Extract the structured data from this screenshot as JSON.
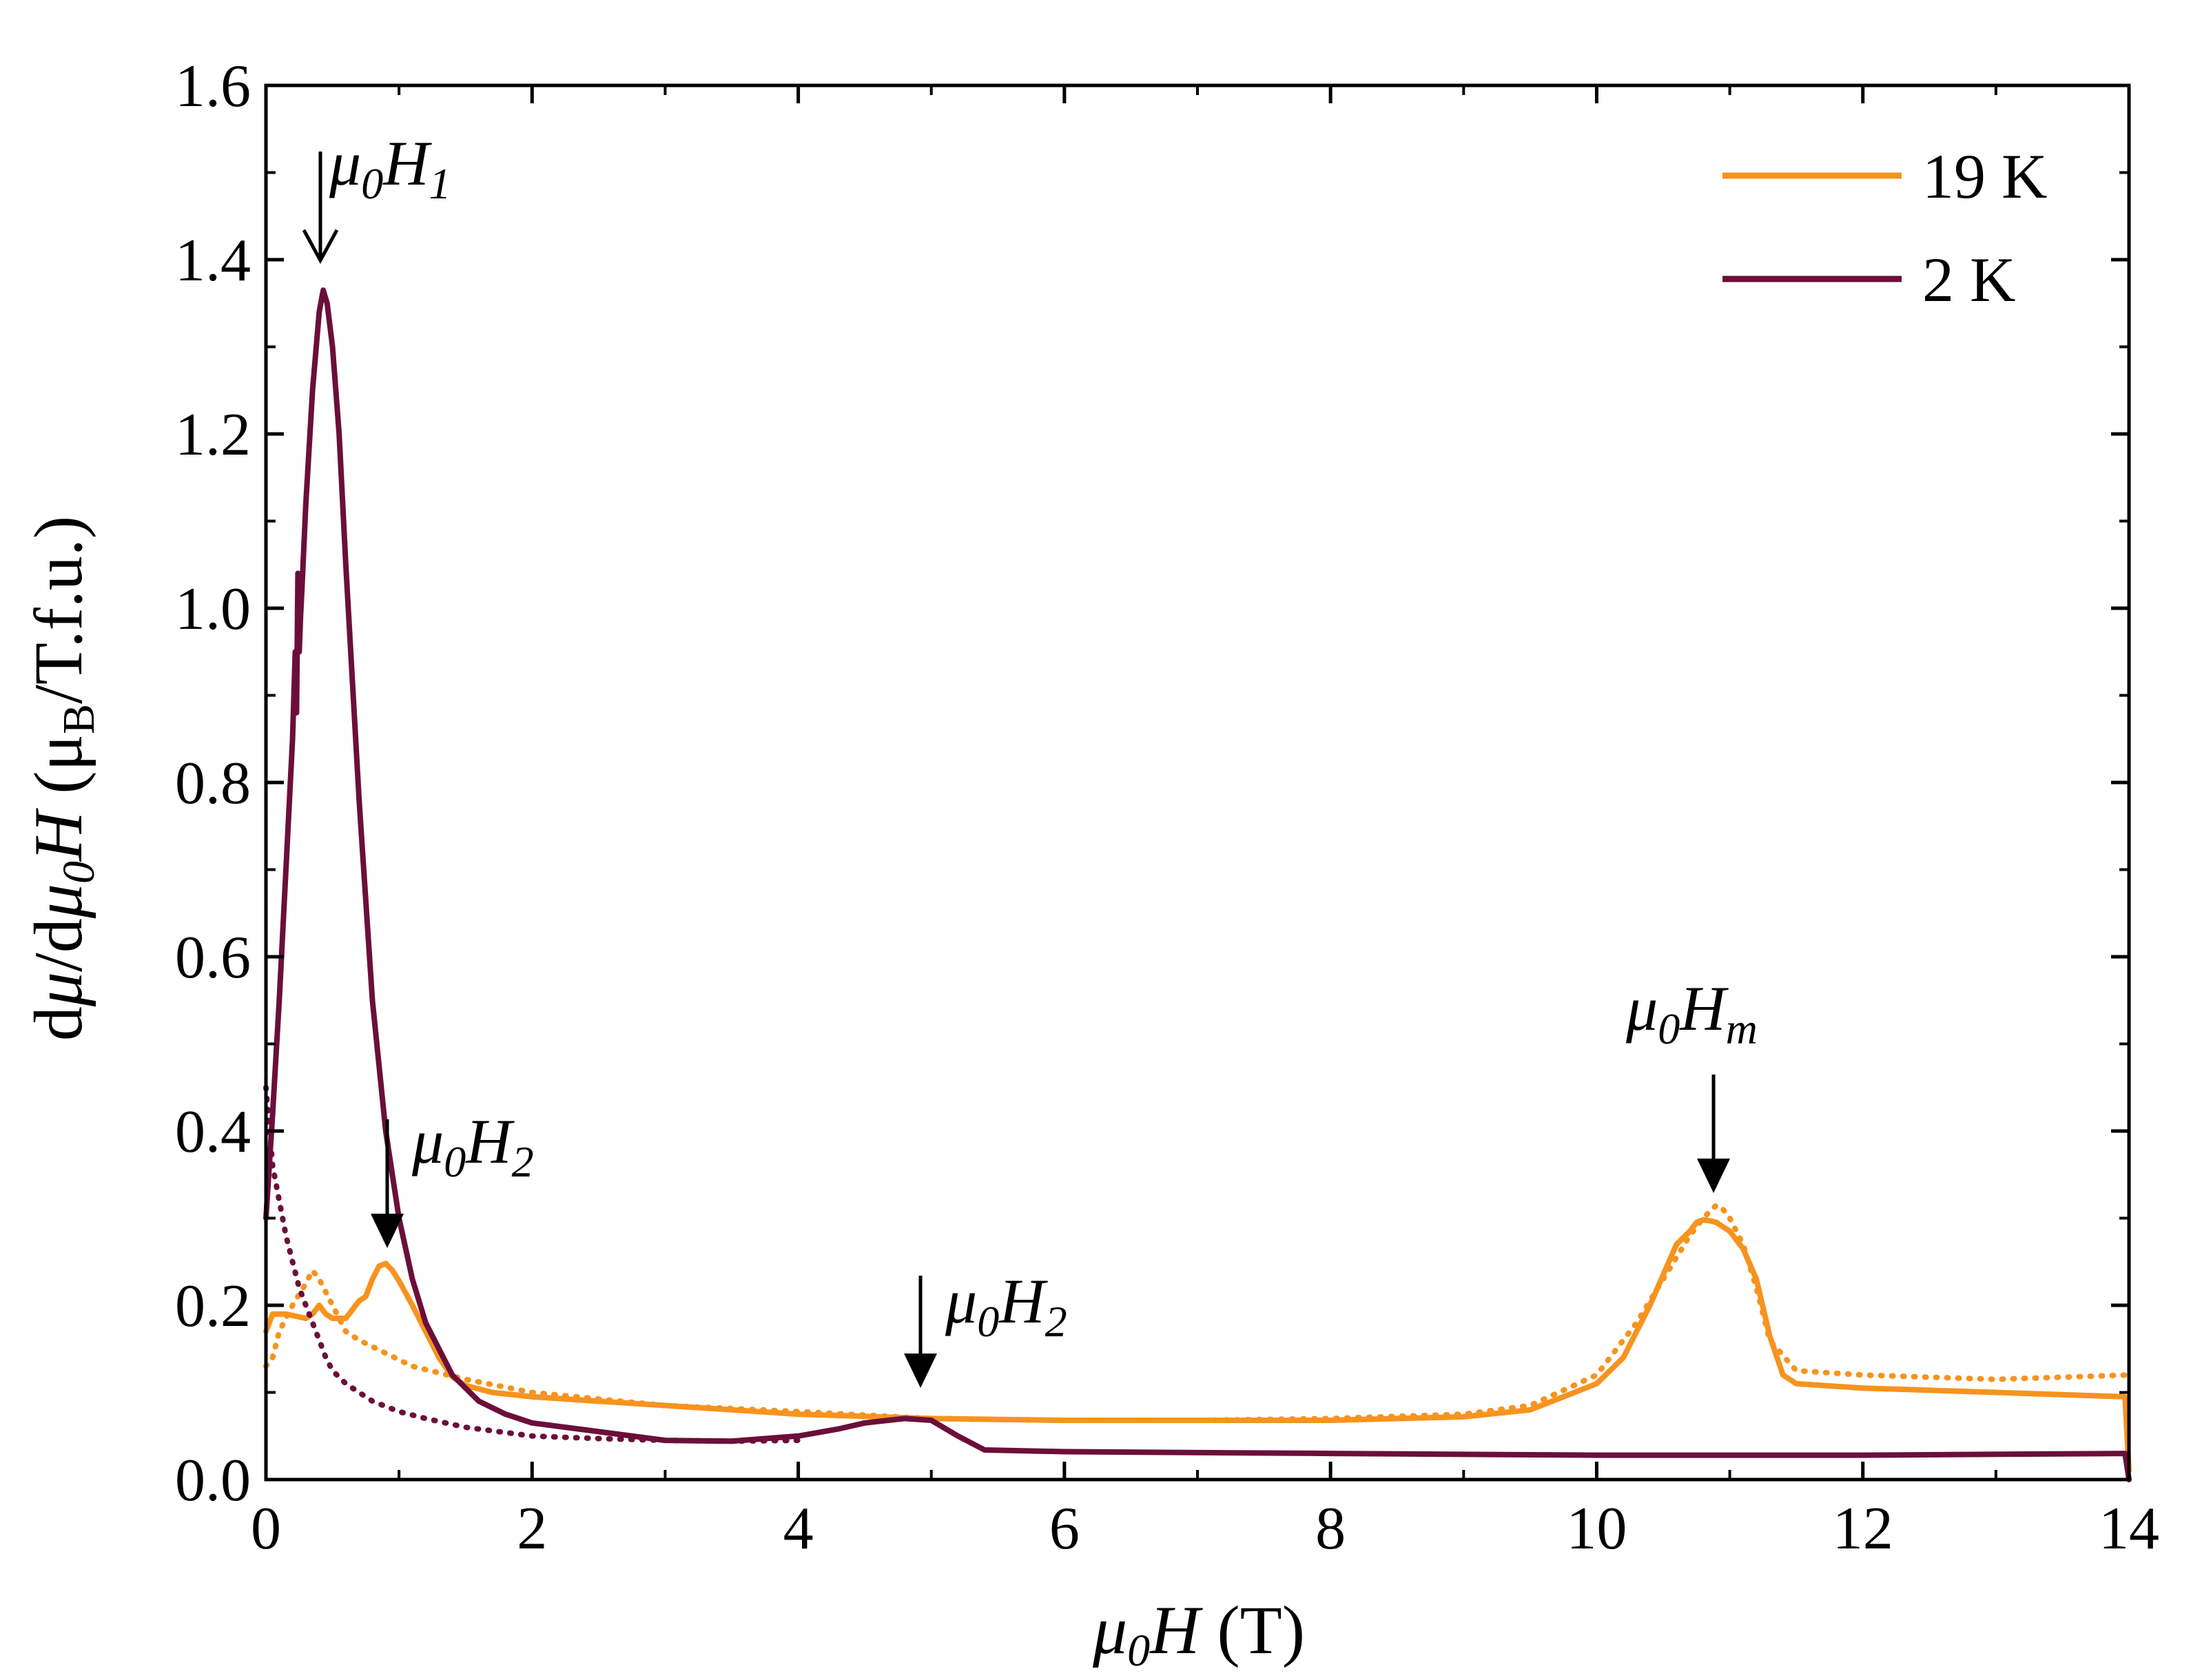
{
  "chart_data": {
    "type": "line",
    "title": "",
    "xlabel": {
      "italic": "μ",
      "italic_sub": "0",
      "italic2": "H",
      "plain": " (T)"
    },
    "ylabel": {
      "pre": "d",
      "mu": "μ",
      "mid": "/d",
      "mu0": "μ",
      "sub0": "0",
      "H": "H",
      "unit_open": " (μ",
      "unit_sub": "B",
      "unit_close": "/T.f.u.)"
    },
    "xlim": [
      0,
      14
    ],
    "ylim": [
      0,
      1.6
    ],
    "x_ticks": [
      "0",
      "2",
      "4",
      "6",
      "8",
      "10",
      "12",
      "14"
    ],
    "y_ticks": [
      "0.0",
      "0.2",
      "0.4",
      "0.6",
      "0.8",
      "1.0",
      "1.2",
      "1.4",
      "1.6"
    ],
    "x_tick_values": [
      0,
      2,
      4,
      6,
      8,
      10,
      12,
      14
    ],
    "y_tick_values": [
      0,
      0.2,
      0.4,
      0.6,
      0.8,
      1.0,
      1.2,
      1.4,
      1.6
    ],
    "legend": {
      "position": "top-right",
      "entries": [
        {
          "label": "19 K",
          "color": "#F7931E"
        },
        {
          "label": "2 K",
          "color": "#6B0F3A"
        }
      ]
    },
    "series": [
      {
        "name": "19 K",
        "style": "solid",
        "color": "#F7931E",
        "x": [
          0.0,
          0.05,
          0.15,
          0.3,
          0.35,
          0.4,
          0.45,
          0.5,
          0.6,
          0.65,
          0.7,
          0.75,
          0.8,
          0.85,
          0.9,
          0.95,
          1.0,
          1.1,
          1.2,
          1.3,
          1.4,
          1.5,
          1.7,
          2.0,
          2.5,
          3.0,
          4.0,
          5.0,
          6.0,
          7.0,
          8.0,
          9.0,
          9.5,
          10.0,
          10.2,
          10.4,
          10.5,
          10.6,
          10.7,
          10.75,
          10.8,
          10.85,
          10.9,
          10.95,
          11.0,
          11.05,
          11.1,
          11.2,
          11.3,
          11.4,
          11.5,
          12.0,
          13.0,
          13.97,
          14.0
        ],
        "y": [
          0.17,
          0.19,
          0.19,
          0.185,
          0.19,
          0.2,
          0.19,
          0.185,
          0.185,
          0.195,
          0.205,
          0.21,
          0.23,
          0.245,
          0.248,
          0.24,
          0.228,
          0.2,
          0.17,
          0.14,
          0.118,
          0.108,
          0.1,
          0.095,
          0.09,
          0.085,
          0.075,
          0.07,
          0.068,
          0.068,
          0.068,
          0.072,
          0.08,
          0.11,
          0.14,
          0.2,
          0.235,
          0.27,
          0.285,
          0.295,
          0.298,
          0.297,
          0.295,
          0.29,
          0.285,
          0.275,
          0.265,
          0.23,
          0.165,
          0.12,
          0.11,
          0.105,
          0.1,
          0.095,
          0.01
        ]
      },
      {
        "name": "19 K",
        "style": "dotted",
        "color": "#F7931E",
        "x": [
          0.0,
          0.05,
          0.1,
          0.2,
          0.3,
          0.35,
          0.4,
          0.5,
          0.6,
          0.7,
          0.9,
          1.1,
          1.5,
          2.0,
          3.0,
          4.0,
          5.0,
          6.0,
          7.0,
          8.0,
          9.0,
          9.5,
          10.0,
          10.3,
          10.5,
          10.7,
          10.8,
          10.9,
          10.95,
          11.0,
          11.1,
          11.2,
          11.3,
          11.5,
          12.0,
          13.0,
          14.0
        ],
        "y": [
          0.13,
          0.14,
          0.17,
          0.2,
          0.225,
          0.24,
          0.23,
          0.2,
          0.17,
          0.16,
          0.145,
          0.13,
          0.115,
          0.1,
          0.085,
          0.078,
          0.07,
          0.068,
          0.068,
          0.07,
          0.075,
          0.085,
          0.12,
          0.18,
          0.23,
          0.28,
          0.3,
          0.315,
          0.31,
          0.3,
          0.27,
          0.22,
          0.16,
          0.125,
          0.12,
          0.115,
          0.12
        ]
      },
      {
        "name": "2 K",
        "style": "solid",
        "color": "#6B0F3A",
        "x": [
          0.0,
          0.05,
          0.1,
          0.15,
          0.2,
          0.22,
          0.23,
          0.24,
          0.25,
          0.26,
          0.27,
          0.3,
          0.35,
          0.4,
          0.43,
          0.46,
          0.5,
          0.55,
          0.6,
          0.7,
          0.8,
          0.9,
          1.0,
          1.1,
          1.2,
          1.4,
          1.6,
          1.8,
          2.0,
          2.5,
          3.0,
          3.5,
          4.0,
          4.3,
          4.5,
          4.8,
          5.0,
          5.2,
          5.4,
          6.0,
          8.0,
          10.0,
          12.0,
          13.97,
          14.0
        ],
        "y": [
          0.3,
          0.42,
          0.55,
          0.7,
          0.85,
          0.95,
          0.88,
          1.04,
          0.95,
          0.99,
          1.02,
          1.12,
          1.25,
          1.34,
          1.365,
          1.35,
          1.3,
          1.2,
          1.05,
          0.78,
          0.55,
          0.4,
          0.3,
          0.23,
          0.18,
          0.12,
          0.09,
          0.075,
          0.065,
          0.055,
          0.045,
          0.044,
          0.05,
          0.058,
          0.065,
          0.07,
          0.068,
          0.05,
          0.034,
          0.032,
          0.03,
          0.028,
          0.028,
          0.03,
          0.0
        ]
      },
      {
        "name": "2 K",
        "style": "dotted",
        "color": "#6B0F3A",
        "x": [
          0.0,
          0.05,
          0.1,
          0.15,
          0.2,
          0.25,
          0.3,
          0.35,
          0.4,
          0.45,
          0.5,
          0.6,
          0.7,
          0.8,
          1.0,
          1.2,
          1.5,
          2.0,
          2.5,
          3.0,
          3.5,
          4.0
        ],
        "y": [
          0.45,
          0.36,
          0.32,
          0.28,
          0.25,
          0.22,
          0.2,
          0.18,
          0.16,
          0.14,
          0.125,
          0.11,
          0.1,
          0.09,
          0.078,
          0.07,
          0.06,
          0.05,
          0.047,
          0.045,
          0.044,
          0.045
        ]
      }
    ],
    "annotations": [
      {
        "sym": "μ",
        "sub": "0",
        "var": "H",
        "sub2": "1",
        "x": 0.42,
        "y": 1.4,
        "arrow": "open"
      },
      {
        "sym": "μ",
        "sub": "0",
        "var": "H",
        "sub2": "2",
        "x": 0.93,
        "y": 0.255,
        "arrow": "filled"
      },
      {
        "sym": "μ",
        "sub": "0",
        "var": "H",
        "sub2": "2",
        "x": 4.9,
        "y": 0.09,
        "arrow": "filled"
      },
      {
        "sym": "μ",
        "sub": "0",
        "var": "H",
        "sub2": "m",
        "x": 10.87,
        "y": 0.32,
        "arrow": "filled"
      }
    ]
  }
}
